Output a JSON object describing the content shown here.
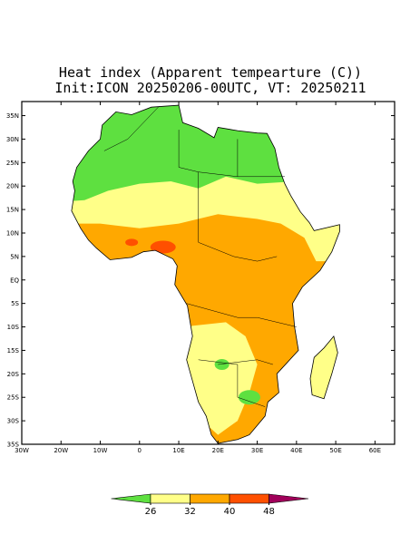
{
  "map": {
    "title": "Heat index (Apparent tempearture (C))",
    "subtitle": "Init:ICON 20250206-00UTC, VT: 20250211",
    "lonlim": [
      -30,
      65
    ],
    "latlim": [
      -35,
      38
    ],
    "lon_ticks": [
      {
        "value": -30,
        "label": "30W"
      },
      {
        "value": -20,
        "label": "20W"
      },
      {
        "value": -10,
        "label": "10W"
      },
      0,
      {
        "value": 10,
        "label": "10E"
      },
      {
        "value": 20,
        "label": "20E"
      },
      {
        "value": 30,
        "label": "30E"
      },
      {
        "value": 40,
        "label": "40E"
      },
      {
        "value": 50,
        "label": "50E"
      },
      {
        "value": 60,
        "label": "60E"
      }
    ],
    "lat_ticks": [
      {
        "value": 35,
        "label": "35N"
      },
      {
        "value": 30,
        "label": "30N"
      },
      {
        "value": 25,
        "label": "25N"
      },
      {
        "value": 20,
        "label": "20N"
      },
      {
        "value": 15,
        "label": "15N"
      },
      {
        "value": 10,
        "label": "10N"
      },
      {
        "value": 5,
        "label": "5N"
      },
      {
        "value": 0,
        "label": "EQ"
      },
      {
        "value": -5,
        "label": "5S"
      },
      {
        "value": -10,
        "label": "10S"
      },
      {
        "value": -15,
        "label": "15S"
      },
      {
        "value": -20,
        "label": "20S"
      },
      {
        "value": -25,
        "label": "25S"
      },
      {
        "value": -30,
        "label": "30S"
      },
      {
        "value": -35,
        "label": "35S"
      }
    ],
    "colorbar": {
      "ticks": [
        26,
        32,
        40,
        48
      ],
      "colors": [
        "#5ee040",
        "#ffff88",
        "#ffa800",
        "#ff5000",
        "#a0005a"
      ]
    }
  }
}
